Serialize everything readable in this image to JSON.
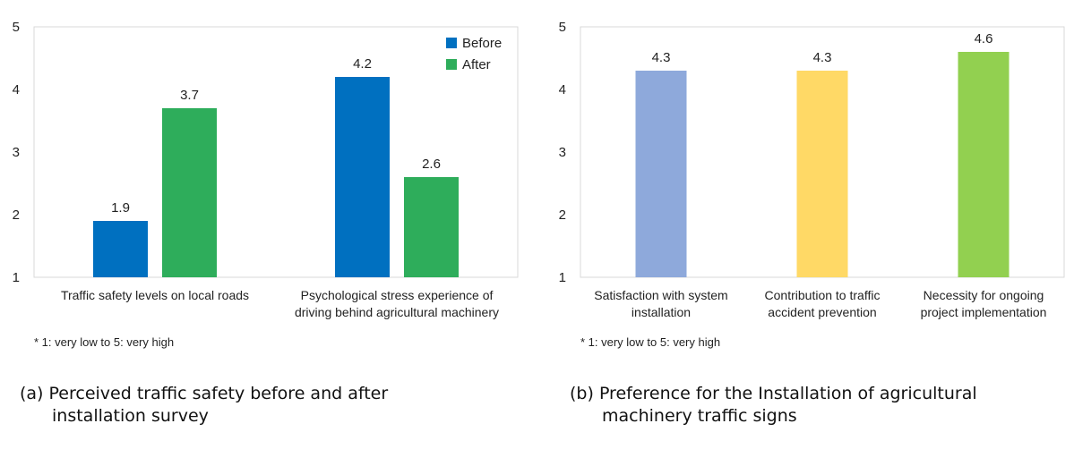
{
  "chart_data": [
    {
      "type": "bar",
      "caption": "(a) Perceived traffic safety before and after installation survey",
      "caption_tag": "(a)",
      "caption_line1": "Perceived traffic safety before and after",
      "caption_line2": "installation survey",
      "note": "* 1: very low to 5: very high",
      "categories": [
        "Traffic safety levels on local roads",
        "Psychological stress experience of driving behind agricultural machinery"
      ],
      "category_lines": [
        [
          "Traffic safety levels on local roads"
        ],
        [
          "Psychological stress experience of",
          "driving behind agricultural machinery"
        ]
      ],
      "series": [
        {
          "name": "Before",
          "values": [
            1.9,
            4.2
          ],
          "color": "#0070C0"
        },
        {
          "name": "After",
          "values": [
            3.7,
            2.6
          ],
          "color": "#2EAD5B"
        }
      ],
      "ylim": [
        1,
        5
      ],
      "yticks": [
        1,
        2,
        3,
        4,
        5
      ],
      "legend": "top-right",
      "grid": false,
      "title": "",
      "xlabel": "",
      "ylabel": ""
    },
    {
      "type": "bar",
      "caption": "(b) Preference for the Installation of agricultural machinery traffic signs",
      "caption_tag": "(b)",
      "caption_line1": "Preference for the Installation of agricultural",
      "caption_line2": "machinery traffic signs",
      "note": "* 1: very low to 5: very high",
      "categories": [
        "Satisfaction with system installation",
        "Contribution to traffic accident prevention",
        "Necessity for ongoing project implementation"
      ],
      "category_lines": [
        [
          "Satisfaction with system",
          "installation"
        ],
        [
          "Contribution to traffic",
          "accident prevention"
        ],
        [
          "Necessity for ongoing",
          "project implementation"
        ]
      ],
      "values": [
        4.3,
        4.3,
        4.6
      ],
      "value_labels": [
        "4.3",
        "4.3",
        "4.6"
      ],
      "colors": [
        "#8EA9DB",
        "#FFD966",
        "#92D050"
      ],
      "ylim": [
        1,
        5
      ],
      "yticks": [
        1,
        2,
        3,
        4,
        5
      ],
      "grid": false,
      "title": "",
      "xlabel": "",
      "ylabel": ""
    }
  ]
}
